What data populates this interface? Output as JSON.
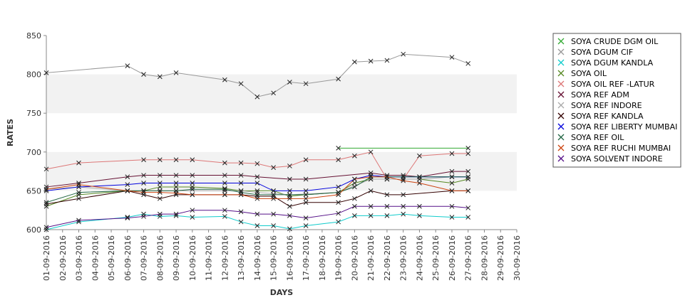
{
  "chart_data": {
    "type": "line",
    "xlabel": "DAYS",
    "ylabel": "RATES",
    "ylim": [
      600,
      850
    ],
    "yticks": [
      600,
      650,
      700,
      750,
      800,
      850
    ],
    "bands": [
      [
        650,
        700
      ],
      [
        750,
        800
      ]
    ],
    "grid": false,
    "legend_position": "right",
    "categories": [
      "01-09-2016",
      "02-09-2016",
      "03-09-2016",
      "04-09-2016",
      "05-09-2016",
      "06-09-2016",
      "07-09-2016",
      "08-09-2016",
      "09-09-2016",
      "10-09-2016",
      "11-09-2016",
      "12-09-2016",
      "13-09-2016",
      "14-09-2016",
      "15-09-2016",
      "16-09-2016",
      "17-09-2016",
      "18-09-2016",
      "19-09-2016",
      "20-09-2016",
      "21-09-2016",
      "22-09-2016",
      "23-09-2016",
      "24-09-2016",
      "25-09-2016",
      "26-09-2016",
      "27-09-2016",
      "28-09-2016",
      "29-09-2016",
      "30-09-2016"
    ],
    "series": [
      {
        "name": "SOYA CRUDE DGM OIL",
        "color": "#33aa33",
        "points": [
          [
            "19-09-2016",
            705
          ],
          [
            "27-09-2016",
            705
          ]
        ]
      },
      {
        "name": "SOYA DGUM CIF",
        "color": "#999999",
        "points": [
          [
            "01-09-2016",
            802
          ],
          [
            "06-09-2016",
            811
          ],
          [
            "07-09-2016",
            800
          ],
          [
            "08-09-2016",
            797
          ],
          [
            "09-09-2016",
            802
          ],
          [
            "12-09-2016",
            793
          ],
          [
            "13-09-2016",
            788
          ],
          [
            "14-09-2016",
            771
          ],
          [
            "15-09-2016",
            776
          ],
          [
            "16-09-2016",
            790
          ],
          [
            "17-09-2016",
            788
          ],
          [
            "19-09-2016",
            794
          ],
          [
            "20-09-2016",
            816
          ],
          [
            "21-09-2016",
            817
          ],
          [
            "22-09-2016",
            818
          ],
          [
            "23-09-2016",
            826
          ],
          [
            "26-09-2016",
            822
          ],
          [
            "27-09-2016",
            814
          ]
        ]
      },
      {
        "name": "SOYA DGUM KANDLA",
        "color": "#11cccc",
        "points": [
          [
            "01-09-2016",
            600
          ],
          [
            "03-09-2016",
            610
          ],
          [
            "06-09-2016",
            616
          ],
          [
            "07-09-2016",
            620
          ],
          [
            "08-09-2016",
            617
          ],
          [
            "09-09-2016",
            618
          ],
          [
            "10-09-2016",
            616
          ],
          [
            "12-09-2016",
            617
          ],
          [
            "13-09-2016",
            610
          ],
          [
            "14-09-2016",
            605
          ],
          [
            "15-09-2016",
            605
          ],
          [
            "16-09-2016",
            601
          ],
          [
            "17-09-2016",
            605
          ],
          [
            "19-09-2016",
            610
          ],
          [
            "20-09-2016",
            618
          ],
          [
            "21-09-2016",
            618
          ],
          [
            "22-09-2016",
            618
          ],
          [
            "23-09-2016",
            620
          ],
          [
            "24-09-2016",
            618
          ],
          [
            "26-09-2016",
            616
          ],
          [
            "27-09-2016",
            616
          ]
        ]
      },
      {
        "name": "SOYA OIL",
        "color": "#558822",
        "points": [
          [
            "01-09-2016",
            630
          ],
          [
            "03-09-2016",
            645
          ],
          [
            "06-09-2016",
            650
          ],
          [
            "07-09-2016",
            650
          ],
          [
            "08-09-2016",
            655
          ],
          [
            "09-09-2016",
            655
          ],
          [
            "10-09-2016",
            655
          ],
          [
            "12-09-2016",
            653
          ],
          [
            "13-09-2016",
            650
          ],
          [
            "14-09-2016",
            650
          ],
          [
            "15-09-2016",
            650
          ],
          [
            "16-09-2016",
            643
          ],
          [
            "17-09-2016",
            645
          ],
          [
            "19-09-2016",
            648
          ],
          [
            "20-09-2016",
            660
          ],
          [
            "21-09-2016",
            665
          ],
          [
            "22-09-2016",
            665
          ],
          [
            "23-09-2016",
            665
          ],
          [
            "24-09-2016",
            665
          ],
          [
            "26-09-2016",
            660
          ],
          [
            "27-09-2016",
            665
          ]
        ]
      },
      {
        "name": "SOYA OIL REF -LATUR",
        "color": "#dd7777",
        "points": [
          [
            "01-09-2016",
            678
          ],
          [
            "03-09-2016",
            686
          ],
          [
            "07-09-2016",
            690
          ],
          [
            "08-09-2016",
            690
          ],
          [
            "09-09-2016",
            690
          ],
          [
            "10-09-2016",
            690
          ],
          [
            "12-09-2016",
            686
          ],
          [
            "13-09-2016",
            686
          ],
          [
            "14-09-2016",
            685
          ],
          [
            "15-09-2016",
            680
          ],
          [
            "16-09-2016",
            682
          ],
          [
            "17-09-2016",
            690
          ],
          [
            "19-09-2016",
            690
          ],
          [
            "20-09-2016",
            695
          ],
          [
            "21-09-2016",
            700
          ],
          [
            "22-09-2016",
            665
          ],
          [
            "23-09-2016",
            665
          ],
          [
            "24-09-2016",
            695
          ],
          [
            "26-09-2016",
            698
          ],
          [
            "27-09-2016",
            698
          ]
        ]
      },
      {
        "name": "SOYA REF ADM",
        "color": "#661133",
        "points": [
          [
            "01-09-2016",
            655
          ],
          [
            "03-09-2016",
            660
          ],
          [
            "06-09-2016",
            668
          ],
          [
            "07-09-2016",
            670
          ],
          [
            "08-09-2016",
            670
          ],
          [
            "09-09-2016",
            670
          ],
          [
            "10-09-2016",
            670
          ],
          [
            "12-09-2016",
            670
          ],
          [
            "13-09-2016",
            670
          ],
          [
            "14-09-2016",
            668
          ],
          [
            "16-09-2016",
            665
          ],
          [
            "17-09-2016",
            665
          ],
          [
            "21-09-2016",
            673
          ],
          [
            "22-09-2016",
            670
          ],
          [
            "23-09-2016",
            670
          ],
          [
            "24-09-2016",
            668
          ],
          [
            "26-09-2016",
            675
          ],
          [
            "27-09-2016",
            675
          ]
        ]
      },
      {
        "name": "SOYA REF INDORE",
        "color": "#aaaaaa",
        "points": [
          [
            "01-09-2016",
            652
          ],
          [
            "03-09-2016",
            655
          ],
          [
            "06-09-2016",
            650
          ],
          [
            "07-09-2016",
            650
          ],
          [
            "08-09-2016",
            650
          ],
          [
            "09-09-2016",
            650
          ],
          [
            "12-09-2016",
            650
          ],
          [
            "13-09-2016",
            650
          ],
          [
            "14-09-2016",
            648
          ],
          [
            "16-09-2016",
            645
          ],
          [
            "19-09-2016",
            648
          ],
          [
            "21-09-2016",
            665
          ],
          [
            "22-09-2016",
            665
          ],
          [
            "23-09-2016",
            665
          ],
          [
            "24-09-2016",
            665
          ],
          [
            "26-09-2016",
            668
          ],
          [
            "27-09-2016",
            668
          ]
        ]
      },
      {
        "name": "SOYA REF KANDLA",
        "color": "#330000",
        "points": [
          [
            "01-09-2016",
            633
          ],
          [
            "03-09-2016",
            640
          ],
          [
            "06-09-2016",
            650
          ],
          [
            "07-09-2016",
            645
          ],
          [
            "08-09-2016",
            640
          ],
          [
            "09-09-2016",
            645
          ],
          [
            "10-09-2016",
            645
          ],
          [
            "12-09-2016",
            645
          ],
          [
            "13-09-2016",
            645
          ],
          [
            "14-09-2016",
            643
          ],
          [
            "15-09-2016",
            643
          ],
          [
            "16-09-2016",
            630
          ],
          [
            "17-09-2016",
            635
          ],
          [
            "19-09-2016",
            635
          ],
          [
            "20-09-2016",
            640
          ],
          [
            "21-09-2016",
            650
          ],
          [
            "22-09-2016",
            645
          ],
          [
            "23-09-2016",
            645
          ],
          [
            "26-09-2016",
            650
          ],
          [
            "27-09-2016",
            650
          ]
        ]
      },
      {
        "name": "SOYA REF LIBERTY MUMBAI",
        "color": "#0000dd",
        "points": [
          [
            "01-09-2016",
            650
          ],
          [
            "03-09-2016",
            655
          ],
          [
            "06-09-2016",
            658
          ],
          [
            "07-09-2016",
            660
          ],
          [
            "08-09-2016",
            660
          ],
          [
            "09-09-2016",
            660
          ],
          [
            "10-09-2016",
            660
          ],
          [
            "12-09-2016",
            660
          ],
          [
            "13-09-2016",
            660
          ],
          [
            "14-09-2016",
            660
          ],
          [
            "15-09-2016",
            650
          ],
          [
            "16-09-2016",
            650
          ],
          [
            "17-09-2016",
            650
          ],
          [
            "19-09-2016",
            655
          ],
          [
            "20-09-2016",
            665
          ],
          [
            "21-09-2016",
            670
          ],
          [
            "22-09-2016",
            668
          ],
          [
            "23-09-2016",
            668
          ],
          [
            "24-09-2016",
            668
          ],
          [
            "26-09-2016",
            668
          ],
          [
            "27-09-2016",
            668
          ]
        ]
      },
      {
        "name": "SOYA REF OIL",
        "color": "#226644",
        "points": [
          [
            "01-09-2016",
            635
          ],
          [
            "03-09-2016",
            648
          ],
          [
            "06-09-2016",
            650
          ],
          [
            "07-09-2016",
            650
          ],
          [
            "08-09-2016",
            650
          ],
          [
            "09-09-2016",
            650
          ],
          [
            "10-09-2016",
            652
          ],
          [
            "12-09-2016",
            652
          ],
          [
            "13-09-2016",
            648
          ],
          [
            "14-09-2016",
            645
          ],
          [
            "15-09-2016",
            645
          ],
          [
            "16-09-2016",
            645
          ],
          [
            "17-09-2016",
            645
          ],
          [
            "19-09-2016",
            648
          ],
          [
            "20-09-2016",
            655
          ],
          [
            "21-09-2016",
            668
          ],
          [
            "22-09-2016",
            668
          ],
          [
            "23-09-2016",
            668
          ],
          [
            "24-09-2016",
            668
          ],
          [
            "26-09-2016",
            668
          ],
          [
            "27-09-2016",
            668
          ]
        ]
      },
      {
        "name": "SOYA REF RUCHI MUMBAI",
        "color": "#cc4411",
        "points": [
          [
            "01-09-2016",
            652
          ],
          [
            "03-09-2016",
            658
          ],
          [
            "06-09-2016",
            650
          ],
          [
            "07-09-2016",
            648
          ],
          [
            "08-09-2016",
            648
          ],
          [
            "09-09-2016",
            647
          ],
          [
            "10-09-2016",
            645
          ],
          [
            "12-09-2016",
            645
          ],
          [
            "13-09-2016",
            645
          ],
          [
            "14-09-2016",
            640
          ],
          [
            "15-09-2016",
            640
          ],
          [
            "16-09-2016",
            640
          ],
          [
            "17-09-2016",
            640
          ],
          [
            "19-09-2016",
            645
          ],
          [
            "20-09-2016",
            665
          ],
          [
            "21-09-2016",
            668
          ],
          [
            "22-09-2016",
            668
          ],
          [
            "23-09-2016",
            663
          ],
          [
            "24-09-2016",
            660
          ],
          [
            "26-09-2016",
            650
          ],
          [
            "27-09-2016",
            650
          ]
        ]
      },
      {
        "name": "SOYA SOLVENT INDORE",
        "color": "#551188",
        "points": [
          [
            "01-09-2016",
            603
          ],
          [
            "03-09-2016",
            612
          ],
          [
            "06-09-2016",
            615
          ],
          [
            "07-09-2016",
            617
          ],
          [
            "08-09-2016",
            620
          ],
          [
            "09-09-2016",
            620
          ],
          [
            "10-09-2016",
            625
          ],
          [
            "12-09-2016",
            625
          ],
          [
            "13-09-2016",
            623
          ],
          [
            "14-09-2016",
            620
          ],
          [
            "15-09-2016",
            620
          ],
          [
            "16-09-2016",
            618
          ],
          [
            "17-09-2016",
            615
          ],
          [
            "19-09-2016",
            621
          ],
          [
            "20-09-2016",
            630
          ],
          [
            "21-09-2016",
            630
          ],
          [
            "22-09-2016",
            630
          ],
          [
            "23-09-2016",
            630
          ],
          [
            "24-09-2016",
            630
          ],
          [
            "26-09-2016",
            630
          ],
          [
            "27-09-2016",
            628
          ]
        ]
      }
    ]
  }
}
